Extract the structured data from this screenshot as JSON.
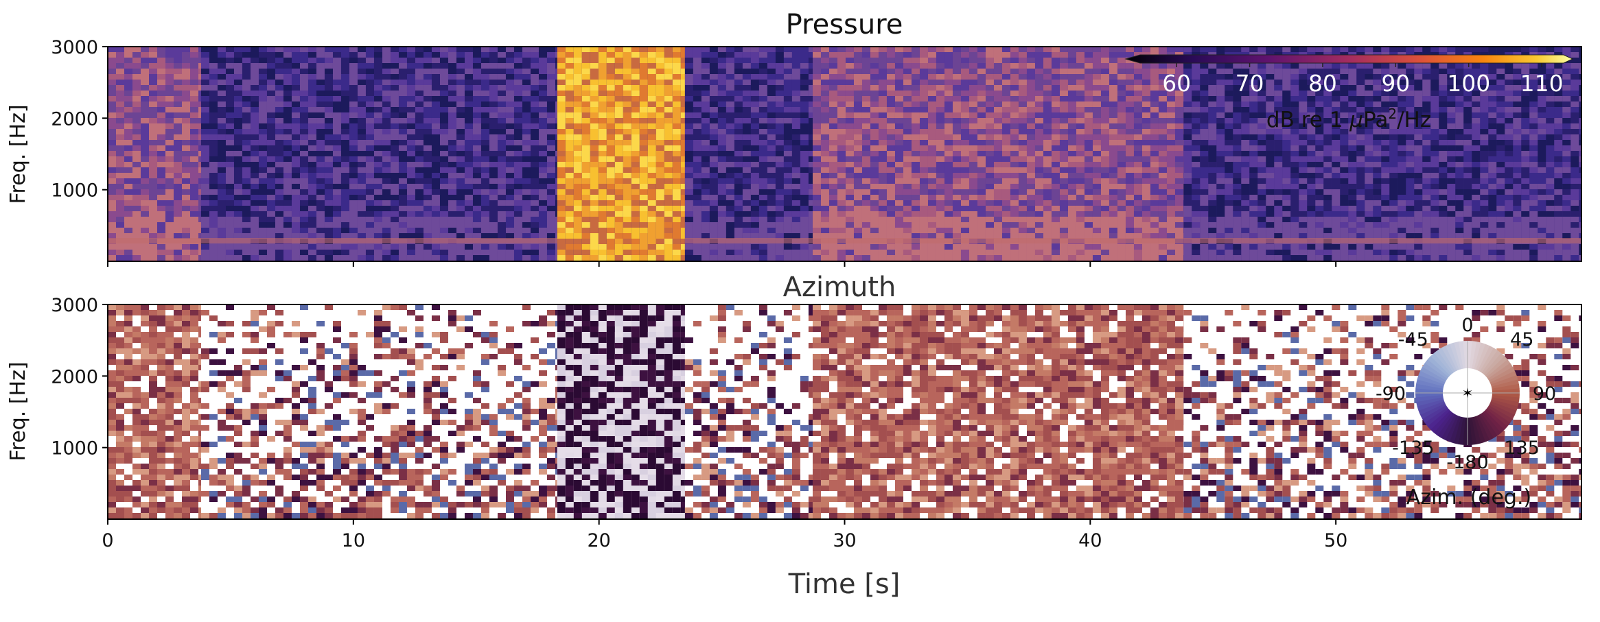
{
  "figure": {
    "xlabel": "Time [s]"
  },
  "chart_data": [
    {
      "type": "heatmap",
      "title": "Pressure",
      "ylabel": "Freq. [Hz]",
      "x_range": [
        0,
        60
      ],
      "y_range": [
        0,
        3000
      ],
      "x_ticks": [
        0,
        10,
        20,
        30,
        40,
        50
      ],
      "y_ticks": [
        1000,
        2000,
        3000
      ],
      "x_tick_labels_visible": false,
      "segments": [
        {
          "t0": 0,
          "t1": 3.8,
          "level": "medium"
        },
        {
          "t0": 3.8,
          "t1": 18.3,
          "level": "low"
        },
        {
          "t0": 18.3,
          "t1": 23.5,
          "level": "very-high"
        },
        {
          "t0": 23.5,
          "t1": 28.7,
          "level": "low"
        },
        {
          "t0": 28.7,
          "t1": 43.8,
          "level": "medium"
        },
        {
          "t0": 43.8,
          "t1": 60,
          "level": "low"
        }
      ],
      "colorbar": {
        "label": "dB re 1 μPa²/Hz",
        "label_parts": {
          "prefix": "dB re 1 ",
          "mu": "μ",
          "unit": "Pa",
          "sup": "2",
          "suffix": "/Hz"
        },
        "ticks": [
          60,
          70,
          80,
          90,
          100,
          110
        ],
        "range": [
          55,
          113
        ],
        "colormap": "inferno-like",
        "placement": "top-right, inside axes"
      }
    },
    {
      "type": "heatmap",
      "title": "Azimuth",
      "ylabel": "Freq. [Hz]",
      "x_range": [
        0,
        60
      ],
      "y_range": [
        0,
        3000
      ],
      "x_ticks": [
        0,
        10,
        20,
        30,
        40,
        50
      ],
      "y_ticks": [
        1000,
        2000,
        3000
      ],
      "segments": [
        {
          "t0": 0,
          "t1": 3.8,
          "pattern": "dense-red"
        },
        {
          "t0": 3.8,
          "t1": 18.3,
          "pattern": "sparse-mixed"
        },
        {
          "t0": 18.3,
          "t1": 23.5,
          "pattern": "dark-purple"
        },
        {
          "t0": 23.5,
          "t1": 28.7,
          "pattern": "sparse-mixed"
        },
        {
          "t0": 28.7,
          "t1": 43.8,
          "pattern": "dense-red"
        },
        {
          "t0": 43.8,
          "t1": 60,
          "pattern": "sparse-mixed"
        }
      ],
      "colorwheel": {
        "label": "Azim. (deg.)",
        "tick_labels": [
          "0",
          "45",
          "90",
          "135",
          "-180",
          "-135",
          "-90",
          "-45"
        ],
        "colormap": "twilight",
        "placement": "bottom-right, inside axes"
      }
    }
  ]
}
